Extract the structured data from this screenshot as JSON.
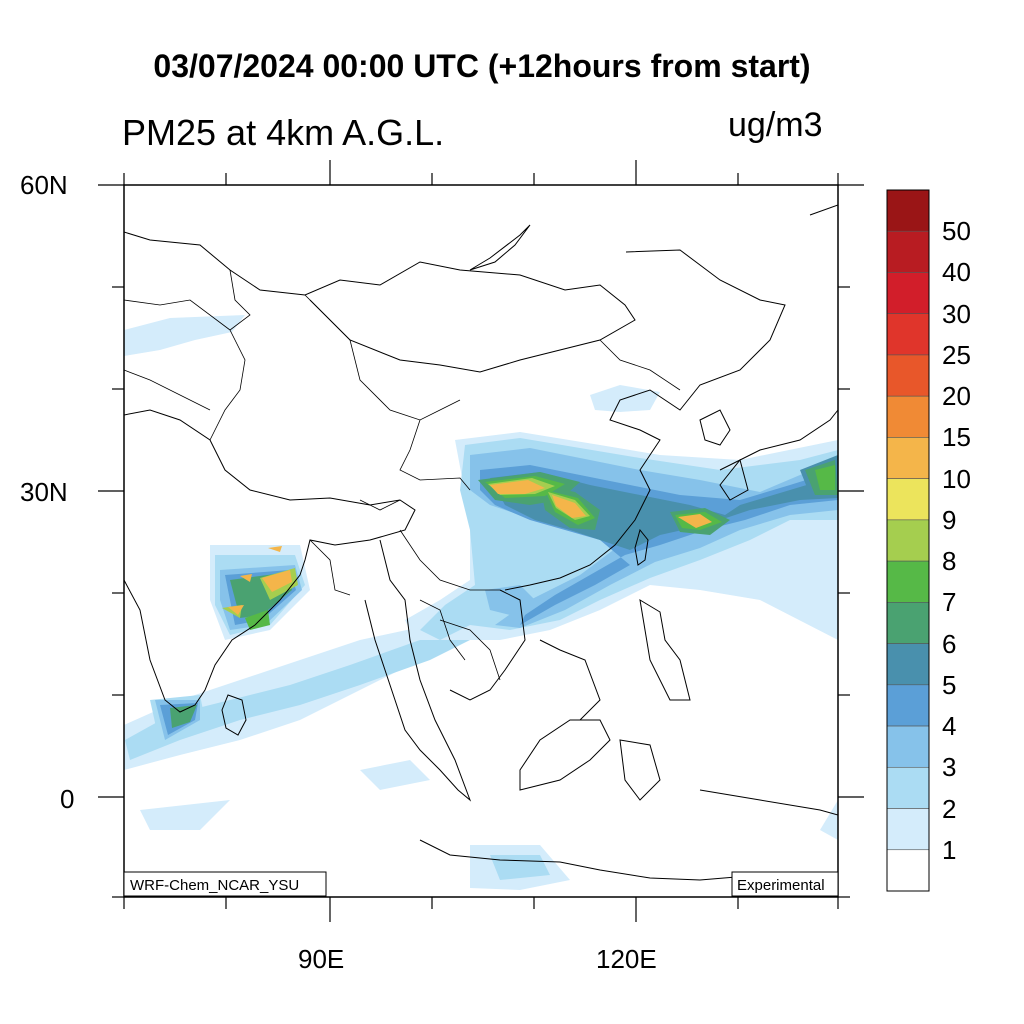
{
  "title": "03/07/2024 00:00 UTC (+12hours from start)",
  "variable": "PM25 at 4km A.G.L.",
  "units": "ug/m3",
  "axes": {
    "lat_ticks": [
      "60N",
      "30N",
      "0"
    ],
    "lon_ticks": [
      "90E",
      "120E"
    ]
  },
  "map": {
    "model_label": "WRF-Chem_NCAR_YSU",
    "status_label": "Experimental",
    "extent": {
      "lon_min": 70,
      "lon_max": 140,
      "lat_min": -10,
      "lat_max": 60
    }
  },
  "colorbar": {
    "labels": [
      "50",
      "40",
      "30",
      "25",
      "20",
      "15",
      "10",
      "9",
      "8",
      "7",
      "6",
      "5",
      "4",
      "3",
      "2",
      "1"
    ],
    "colors": [
      "#9a1516",
      "#b81c22",
      "#d21e2a",
      "#e0352b",
      "#e8572a",
      "#f08a35",
      "#f4b54a",
      "#ece45c",
      "#a5ce4f",
      "#56b947",
      "#4aa271",
      "#4990ad",
      "#5b9fd7",
      "#86c2ea",
      "#abdcf3",
      "#d4ecfb",
      "#ffffff"
    ]
  }
}
